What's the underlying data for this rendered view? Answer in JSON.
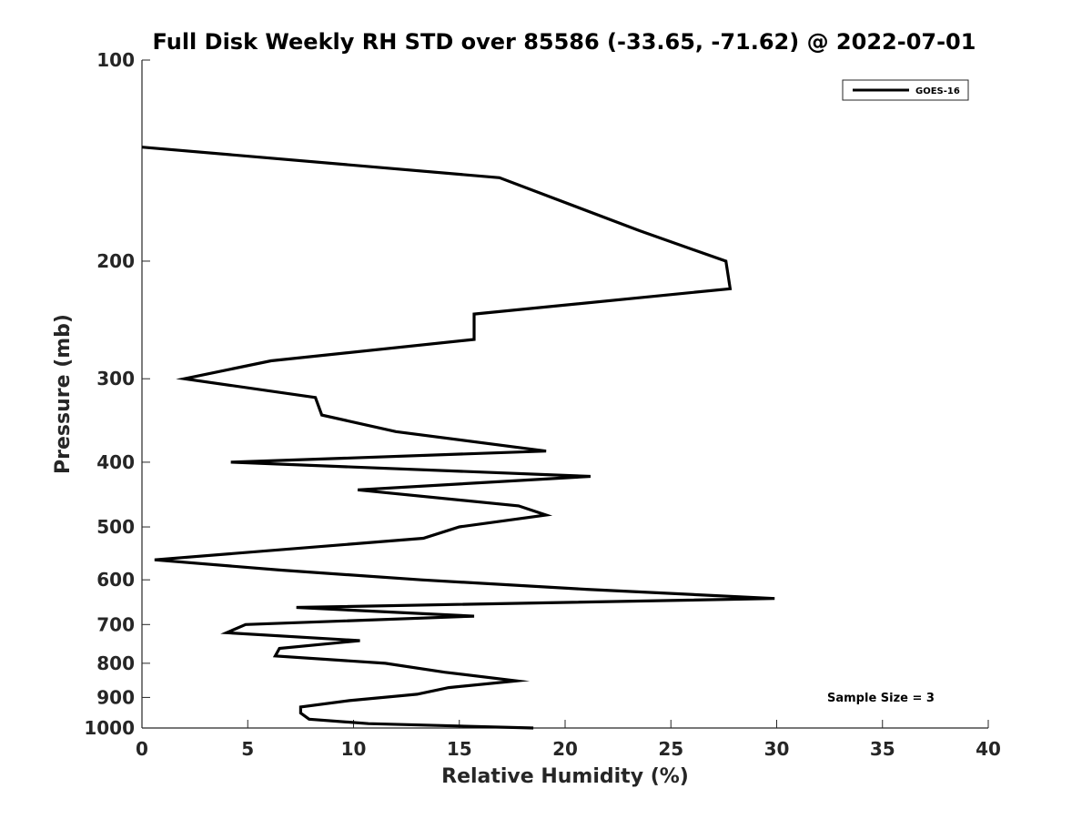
{
  "chart_data": {
    "type": "line",
    "title": "Full Disk Weekly RH STD over 85586 (-33.65, -71.62) @ 2022-07-01",
    "xlabel": "Relative Humidity (%)",
    "ylabel": "Pressure (mb)",
    "xlim": [
      0,
      40
    ],
    "ylim": [
      100,
      1000
    ],
    "y_scale": "log",
    "y_reversed": true,
    "grid": false,
    "legend_position": "top-right",
    "x_ticks": [
      0,
      5,
      10,
      15,
      20,
      25,
      30,
      35,
      40
    ],
    "y_ticks": [
      100,
      200,
      300,
      400,
      500,
      600,
      700,
      800,
      900,
      1000
    ],
    "annotation": "Sample Size = 3",
    "series": [
      {
        "name": "GOES-16",
        "color": "#000000",
        "points": [
          [
            0.0,
            135
          ],
          [
            16.9,
            150
          ],
          [
            23.5,
            180
          ],
          [
            27.6,
            200
          ],
          [
            27.8,
            220
          ],
          [
            15.7,
            240
          ],
          [
            15.7,
            262
          ],
          [
            6.1,
            282
          ],
          [
            2.0,
            300
          ],
          [
            8.2,
            320
          ],
          [
            8.5,
            340
          ],
          [
            12.0,
            360
          ],
          [
            19.1,
            385
          ],
          [
            4.2,
            400
          ],
          [
            21.2,
            420
          ],
          [
            10.2,
            440
          ],
          [
            17.8,
            465
          ],
          [
            19.1,
            480
          ],
          [
            15.0,
            500
          ],
          [
            13.3,
            520
          ],
          [
            0.6,
            560
          ],
          [
            6.5,
            580
          ],
          [
            13.2,
            600
          ],
          [
            21.0,
            620
          ],
          [
            29.9,
            640
          ],
          [
            7.3,
            660
          ],
          [
            15.7,
            680
          ],
          [
            4.9,
            700
          ],
          [
            4.0,
            720
          ],
          [
            10.3,
            740
          ],
          [
            6.5,
            760
          ],
          [
            6.3,
            780
          ],
          [
            11.5,
            800
          ],
          [
            14.3,
            825
          ],
          [
            17.7,
            850
          ],
          [
            14.5,
            870
          ],
          [
            13.0,
            890
          ],
          [
            9.8,
            910
          ],
          [
            7.5,
            930
          ],
          [
            7.5,
            950
          ],
          [
            7.9,
            970
          ],
          [
            10.7,
            985
          ],
          [
            18.5,
            1000
          ]
        ]
      }
    ]
  }
}
